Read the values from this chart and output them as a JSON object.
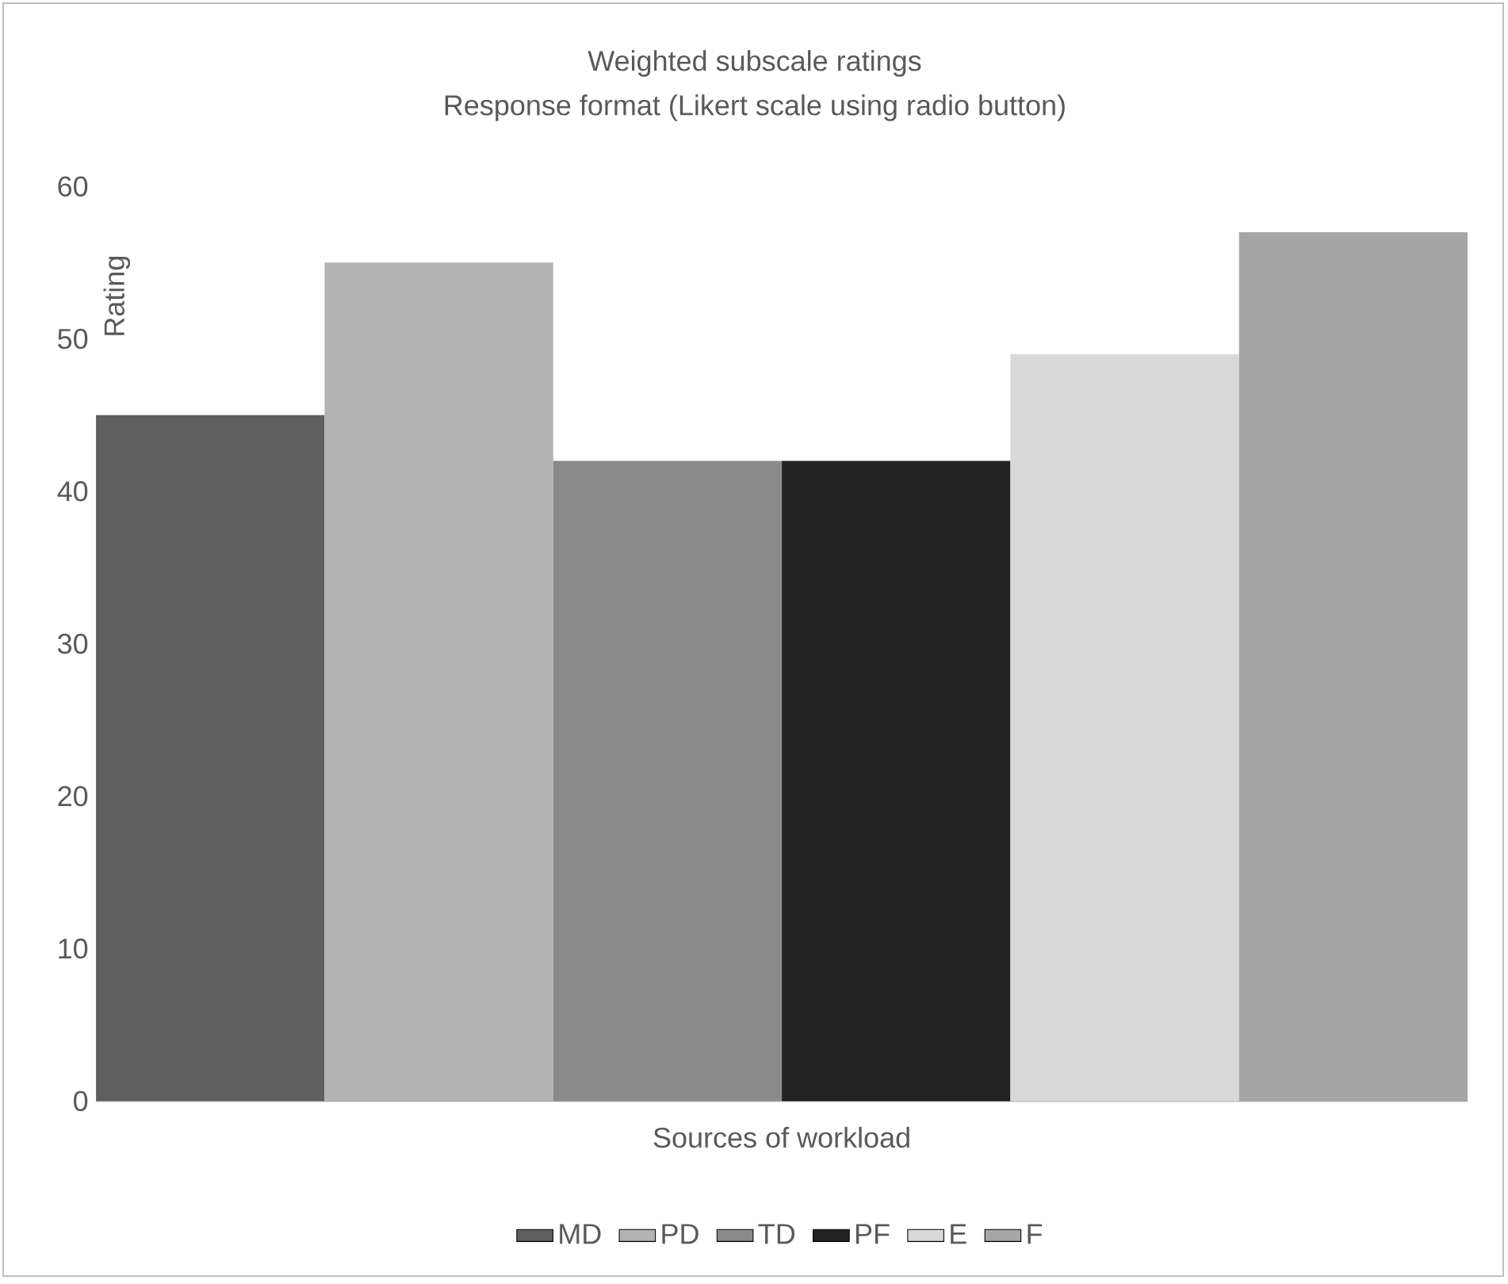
{
  "chart_data": {
    "type": "bar",
    "title": "Weighted subscale ratings",
    "subtitle": "Response format (Likert scale using radio button)",
    "xlabel": "Sources of workload",
    "ylabel": "Rating",
    "categories": [
      null
    ],
    "series": [
      {
        "name": "MD",
        "color": "#5f5f5f",
        "values": [
          45
        ]
      },
      {
        "name": "PD",
        "color": "#b3b3b3",
        "values": [
          55
        ]
      },
      {
        "name": "TD",
        "color": "#8a8a8a",
        "values": [
          42
        ]
      },
      {
        "name": "PF",
        "color": "#222222",
        "values": [
          42
        ]
      },
      {
        "name": "E",
        "color": "#d9d9d9",
        "values": [
          49
        ]
      },
      {
        "name": "F",
        "color": "#a6a6a6",
        "values": [
          57
        ]
      }
    ],
    "ylim": [
      0,
      60
    ],
    "yticks": [
      0,
      10,
      20,
      30,
      40,
      50,
      60
    ],
    "legend": "bottom"
  }
}
